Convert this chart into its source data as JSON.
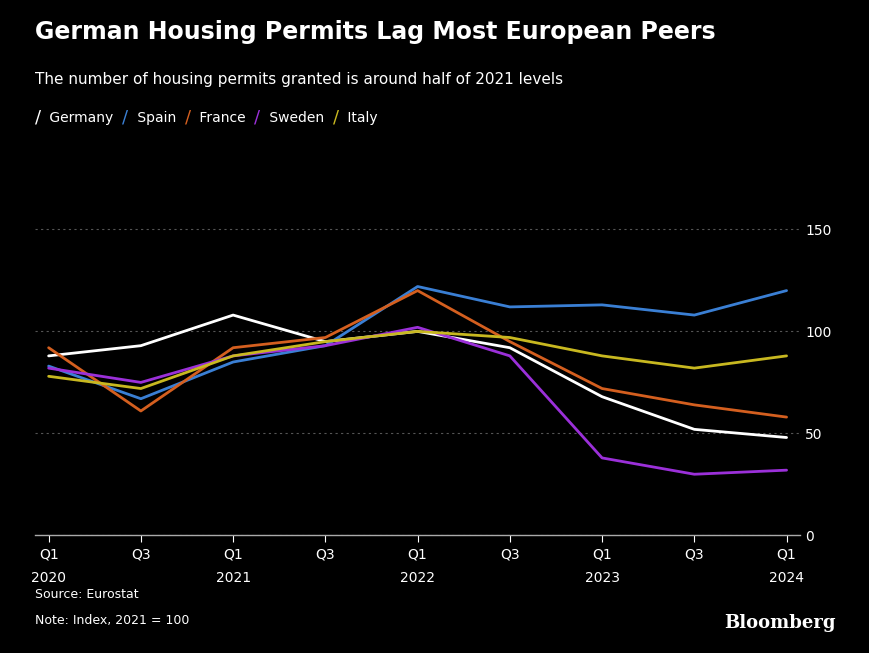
{
  "title": "German Housing Permits Lag Most European Peers",
  "subtitle": "The number of housing permits granted is around half of 2021 levels",
  "source": "Source: Eurostat",
  "note": "Note: Index, 2021 = 100",
  "bloomberg": "Bloomberg",
  "background_color": "#000000",
  "text_color": "#ffffff",
  "grid_color": "#555555",
  "axis_color": "#aaaaaa",
  "x_positions": [
    0,
    2,
    4,
    6,
    8,
    10,
    12,
    14,
    16
  ],
  "x_tick_labels": [
    "Q1",
    "Q3",
    "Q1",
    "Q3",
    "Q1",
    "Q3",
    "Q1",
    "Q3",
    "Q1"
  ],
  "year_positions": [
    0,
    4,
    8,
    12,
    16
  ],
  "year_labels": [
    "2020",
    "2021",
    "2022",
    "2023",
    "2024"
  ],
  "series": [
    {
      "name": "Germany",
      "color": "#ffffff",
      "linewidth": 2.0,
      "data_x": [
        0,
        2,
        4,
        6,
        8,
        10,
        12,
        14,
        16
      ],
      "data_y": [
        88,
        93,
        108,
        95,
        100,
        92,
        68,
        52,
        48
      ]
    },
    {
      "name": "Spain",
      "color": "#3a7fd4",
      "linewidth": 2.0,
      "data_x": [
        0,
        2,
        4,
        6,
        8,
        10,
        12,
        14,
        16
      ],
      "data_y": [
        83,
        67,
        85,
        93,
        122,
        112,
        113,
        108,
        120
      ]
    },
    {
      "name": "France",
      "color": "#d45f1f",
      "linewidth": 2.0,
      "data_x": [
        0,
        2,
        4,
        6,
        8,
        10,
        12,
        14,
        16
      ],
      "data_y": [
        92,
        61,
        92,
        97,
        120,
        95,
        72,
        64,
        58
      ]
    },
    {
      "name": "Sweden",
      "color": "#9b30d9",
      "linewidth": 2.0,
      "data_x": [
        0,
        2,
        4,
        6,
        8,
        10,
        12,
        14,
        16
      ],
      "data_y": [
        82,
        75,
        88,
        93,
        102,
        88,
        38,
        30,
        32
      ]
    },
    {
      "name": "Italy",
      "color": "#c8b820",
      "linewidth": 2.0,
      "data_x": [
        0,
        2,
        4,
        6,
        8,
        10,
        12,
        14,
        16
      ],
      "data_y": [
        78,
        72,
        88,
        95,
        100,
        97,
        88,
        82,
        88
      ]
    }
  ],
  "ylim": [
    0,
    160
  ],
  "yticks": [
    0,
    50,
    100,
    150
  ],
  "ytick_labels": [
    "0",
    "50",
    "100",
    "150"
  ],
  "legend_items": [
    {
      "name": "Germany",
      "color": "#ffffff"
    },
    {
      "name": "Spain",
      "color": "#3a7fd4"
    },
    {
      "name": "France",
      "color": "#d45f1f"
    },
    {
      "name": "Sweden",
      "color": "#9b30d9"
    },
    {
      "name": "Italy",
      "color": "#c8b820"
    }
  ],
  "title_fontsize": 17,
  "subtitle_fontsize": 11,
  "legend_fontsize": 10,
  "tick_fontsize": 10,
  "source_fontsize": 9
}
